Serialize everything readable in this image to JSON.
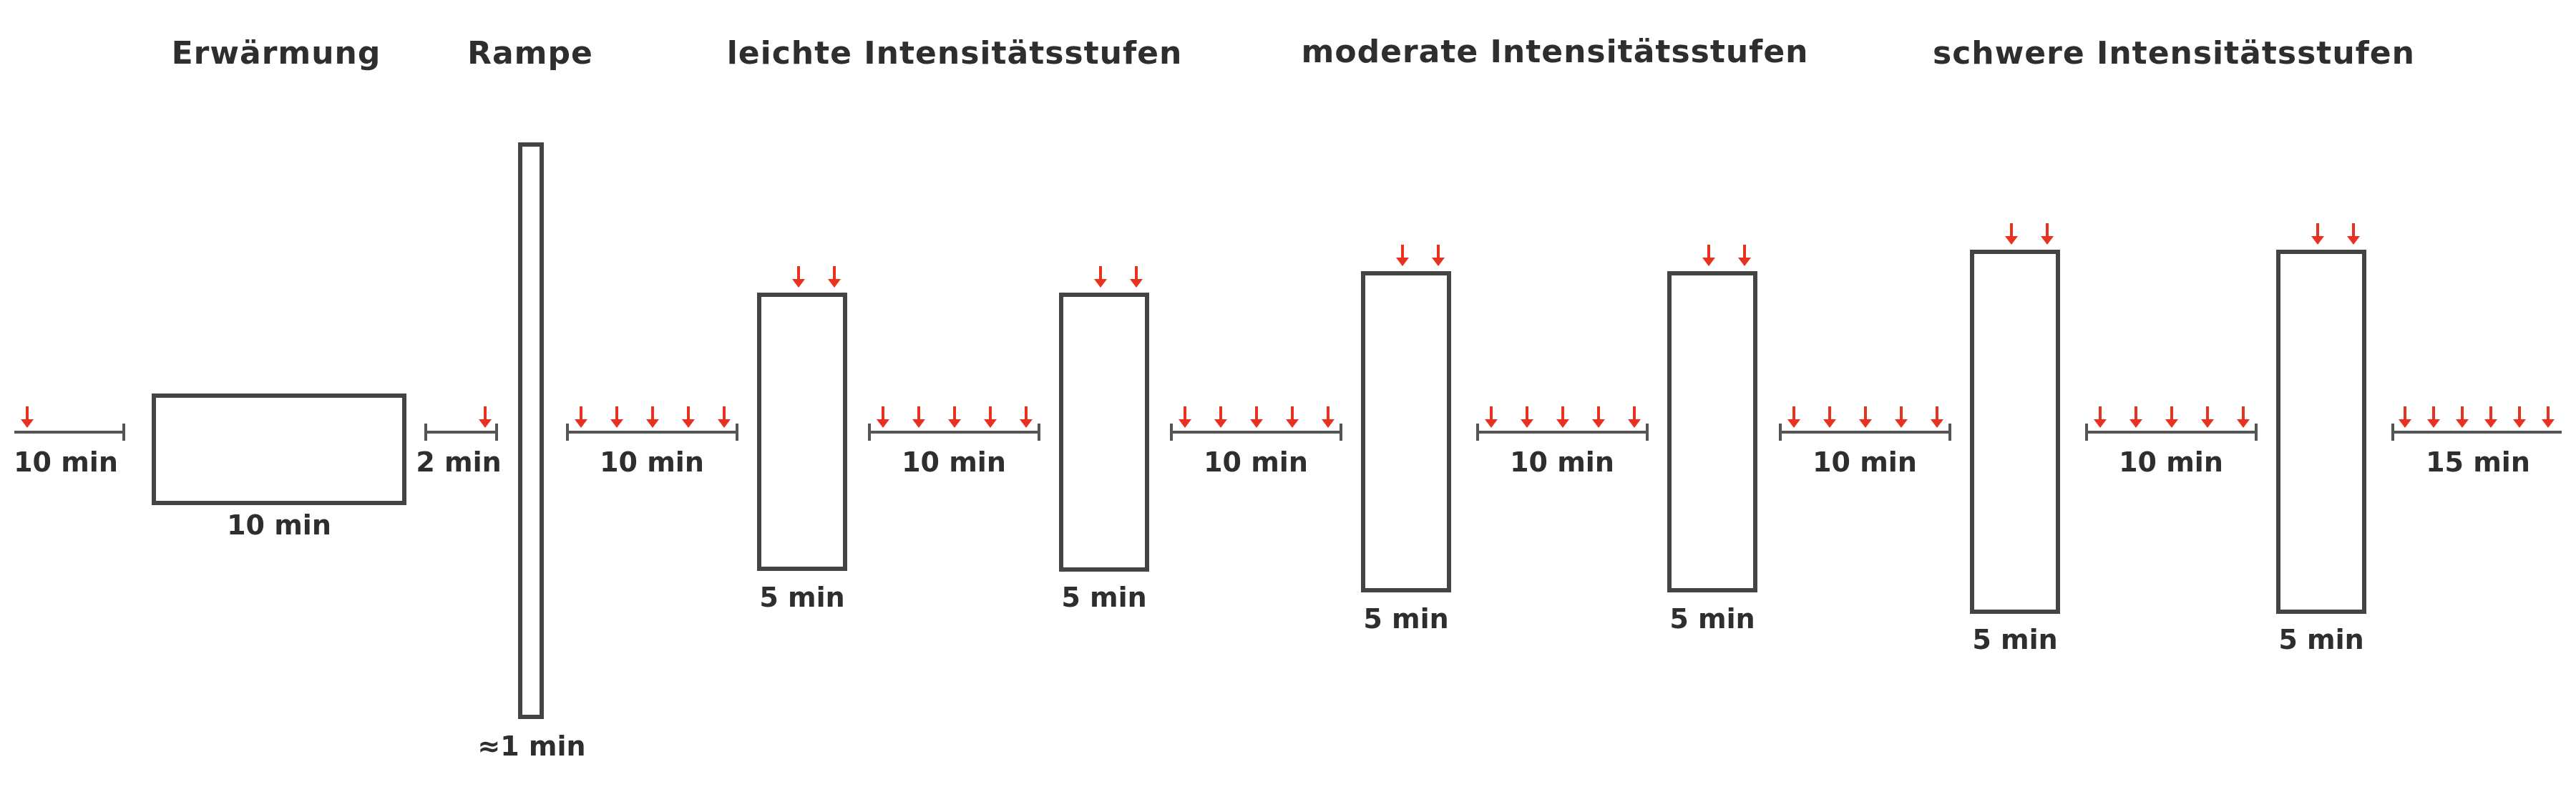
{
  "phases": [
    {
      "id": "warmup",
      "label": "Erwärmung"
    },
    {
      "id": "ramp",
      "label": "Rampe"
    },
    {
      "id": "light",
      "label": "leichte Intensitätsstufen"
    },
    {
      "id": "moderate",
      "label": "moderate Intensitätsstufen"
    },
    {
      "id": "heavy",
      "label": "schwere Intensitätsstufen"
    }
  ],
  "rests": [
    {
      "id": "rest-1",
      "label": "10 min",
      "markers": 1
    },
    {
      "id": "rest-2",
      "label": "2 min",
      "markers": 1
    },
    {
      "id": "rest-3",
      "label": "10 min",
      "markers": 5
    },
    {
      "id": "rest-4",
      "label": "10 min",
      "markers": 5
    },
    {
      "id": "rest-5",
      "label": "10 min",
      "markers": 5
    },
    {
      "id": "rest-6",
      "label": "10 min",
      "markers": 5
    },
    {
      "id": "rest-7",
      "label": "10 min",
      "markers": 5
    },
    {
      "id": "rest-8",
      "label": "10 min",
      "markers": 5
    },
    {
      "id": "rest-9",
      "label": "15 min",
      "markers": 6
    }
  ],
  "blocks": [
    {
      "id": "warmup-block",
      "label": "10 min",
      "markers": 0
    },
    {
      "id": "ramp-block",
      "label": "≈1 min",
      "markers": 0
    },
    {
      "id": "light-1",
      "label": "5 min",
      "markers": 2
    },
    {
      "id": "light-2",
      "label": "5 min",
      "markers": 2
    },
    {
      "id": "moderate-1",
      "label": "5 min",
      "markers": 2
    },
    {
      "id": "moderate-2",
      "label": "5 min",
      "markers": 2
    },
    {
      "id": "heavy-1",
      "label": "5 min",
      "markers": 2
    },
    {
      "id": "heavy-2",
      "label": "5 min",
      "markers": 2
    }
  ],
  "colors": {
    "marker": "#e8321f",
    "outline": "#444444",
    "text": "#2e2e2e"
  }
}
